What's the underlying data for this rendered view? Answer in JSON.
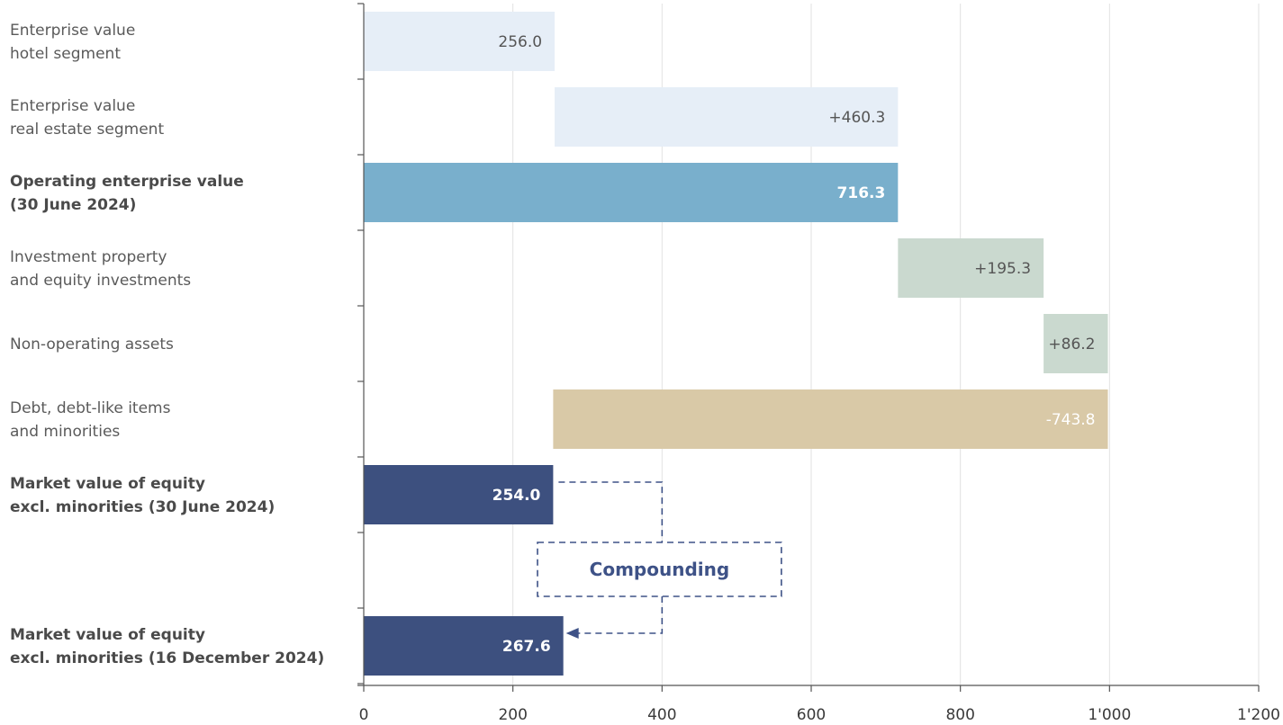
{
  "chart_data": {
    "type": "bar",
    "subtype": "waterfall",
    "orientation": "horizontal",
    "xlim": [
      0,
      1200
    ],
    "x_ticks": [
      0,
      200,
      400,
      600,
      800,
      1000,
      1200
    ],
    "x_tick_labels": [
      "0",
      "200",
      "400",
      "600",
      "800",
      "1'000",
      "1'200"
    ],
    "grid": "vertical",
    "colors": {
      "light_blue": "#e6eef7",
      "mid_blue": "#79afcc",
      "sage": "#cad9cf",
      "sand": "#d9c9a7",
      "navy": "#3d507f",
      "connector": "#3e5287"
    },
    "rows": [
      {
        "label_lines": [
          "Enterprise value",
          "hotel segment"
        ],
        "bold": false,
        "start": 0,
        "end": 256.0,
        "value_label": "256.0",
        "color": "light_blue",
        "value_color": "#555555"
      },
      {
        "label_lines": [
          "Enterprise value",
          "real estate segment"
        ],
        "bold": false,
        "start": 256.0,
        "end": 716.3,
        "value_label": "+460.3",
        "color": "light_blue",
        "value_color": "#555555"
      },
      {
        "label_lines": [
          "Operating enterprise value",
          "(30 June 2024)"
        ],
        "bold": true,
        "start": 0,
        "end": 716.3,
        "value_label": "716.3",
        "color": "mid_blue",
        "value_color": "#ffffff"
      },
      {
        "label_lines": [
          "Investment property",
          "and equity investments"
        ],
        "bold": false,
        "start": 716.3,
        "end": 911.6,
        "value_label": "+195.3",
        "color": "sage",
        "value_color": "#555555"
      },
      {
        "label_lines": [
          "Non-operating assets"
        ],
        "bold": false,
        "start": 911.6,
        "end": 997.8,
        "value_label": "+86.2",
        "color": "sage",
        "value_color": "#555555"
      },
      {
        "label_lines": [
          "Debt, debt-like items",
          "and minorities"
        ],
        "bold": false,
        "start": 254.0,
        "end": 997.8,
        "value_label": "-743.8",
        "color": "sand",
        "value_color": "#ffffff"
      },
      {
        "label_lines": [
          "Market value of equity",
          "excl. minorities (30 June 2024)"
        ],
        "bold": true,
        "start": 0,
        "end": 254.0,
        "value_label": "254.0",
        "color": "navy",
        "value_color": "#ffffff"
      },
      {
        "label_lines": [],
        "bold": false,
        "start": null,
        "end": null,
        "value_label": "",
        "color": null,
        "value_color": null
      },
      {
        "label_lines": [
          "Market value of equity",
          "excl. minorities (16 December 2024)"
        ],
        "bold": true,
        "start": 0,
        "end": 267.6,
        "value_label": "267.6",
        "color": "navy",
        "value_color": "#ffffff"
      }
    ],
    "annotation": {
      "text": "Compounding",
      "from_row": 6,
      "to_row": 8,
      "box_in_row": 7,
      "style": "dashed"
    }
  }
}
